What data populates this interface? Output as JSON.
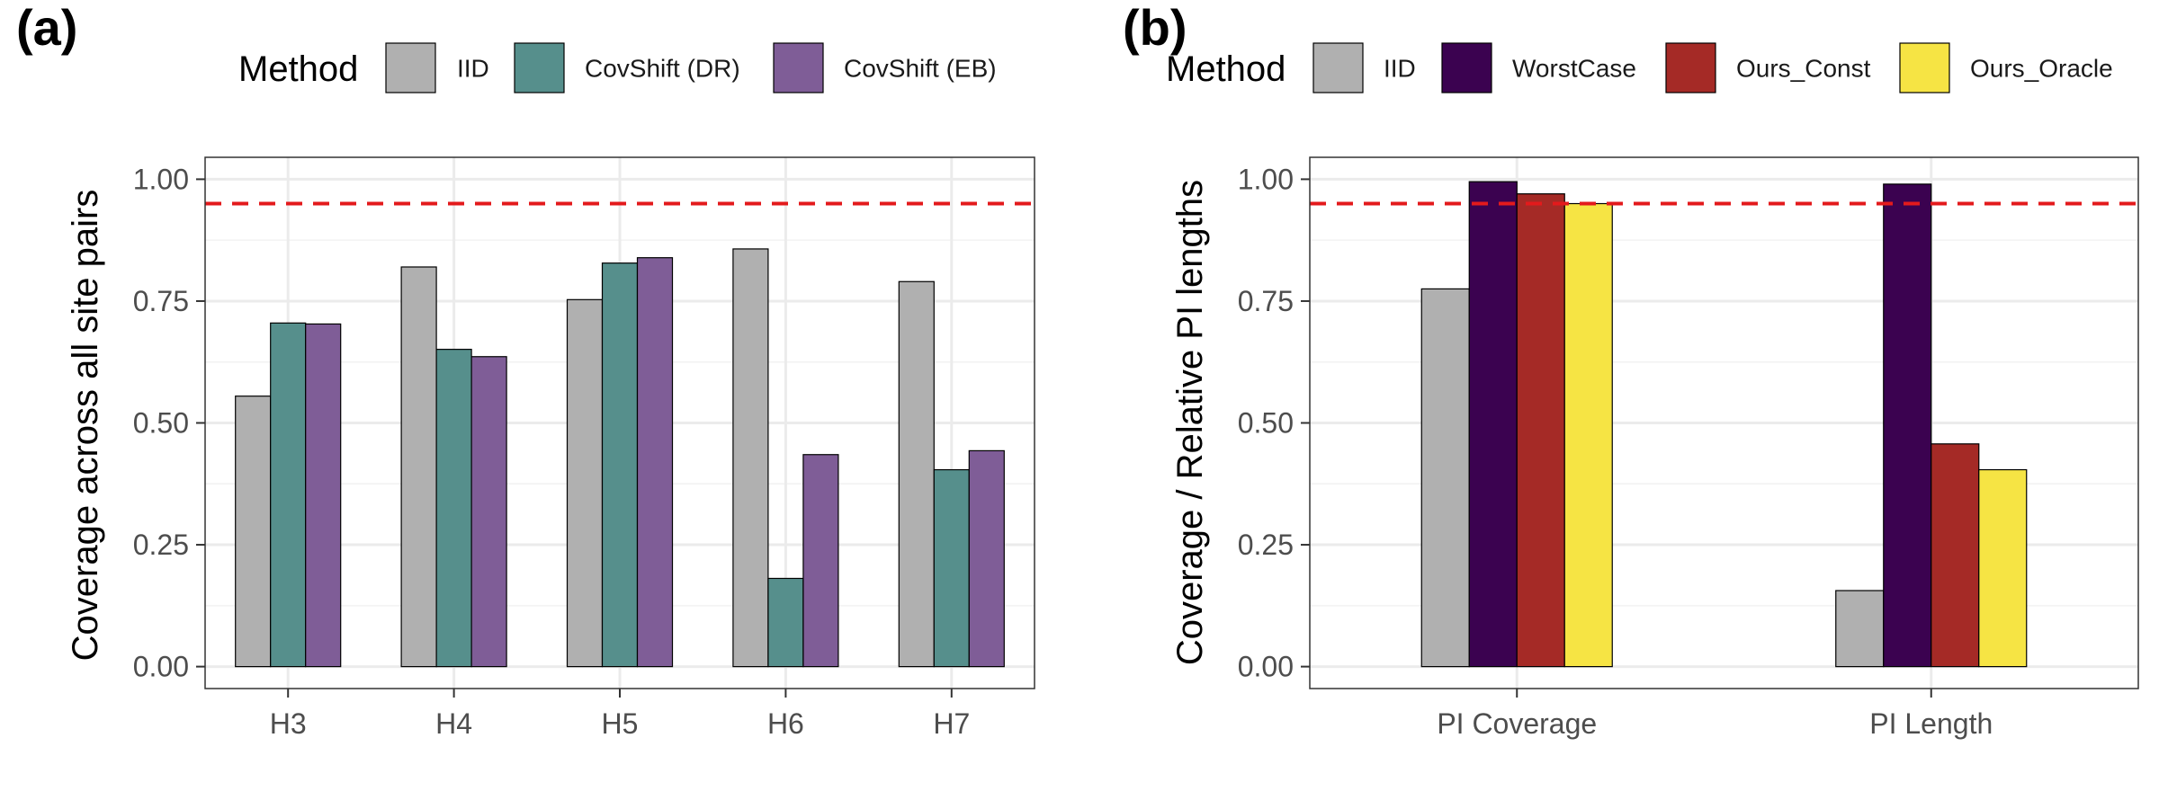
{
  "panels": [
    {
      "letter": "(a)",
      "legend_title": "Method",
      "ylabel": "Coverage across all site pairs",
      "chart_data": {
        "type": "bar",
        "categories": [
          "H3",
          "H4",
          "H5",
          "H6",
          "H7"
        ],
        "series": [
          {
            "name": "IID",
            "color": "#b0b0b0",
            "values": [
              0.555,
              0.82,
              0.753,
              0.857,
              0.79
            ]
          },
          {
            "name": "CovShift (DR)",
            "color": "#568f8c",
            "values": [
              0.705,
              0.651,
              0.828,
              0.181,
              0.404
            ]
          },
          {
            "name": "CovShift (EB)",
            "color": "#7f5d97",
            "values": [
              0.703,
              0.636,
              0.839,
              0.435,
              0.443
            ]
          }
        ],
        "ylim": [
          -0.045,
          1.045
        ],
        "yticks": [
          "0.00",
          "0.25",
          "0.50",
          "0.75",
          "1.00"
        ],
        "ytick_values": [
          0,
          0.25,
          0.5,
          0.75,
          1.0
        ],
        "reference_line": {
          "value": 0.95,
          "color": "#e31a1c",
          "style": "dashed"
        },
        "grid": true,
        "legend_position": "top"
      }
    },
    {
      "letter": "(b)",
      "legend_title": "Method",
      "ylabel": "Coverage / Relative PI lengths",
      "chart_data": {
        "type": "bar",
        "categories": [
          "PI Coverage",
          "PI Length"
        ],
        "series": [
          {
            "name": "IID",
            "color": "#b0b0b0",
            "values": [
              0.775,
              0.156
            ]
          },
          {
            "name": "WorstCase",
            "color": "#3b0250",
            "values": [
              0.995,
              0.99
            ]
          },
          {
            "name": "Ours_Const",
            "color": "#a52a26",
            "values": [
              0.97,
              0.457
            ]
          },
          {
            "name": "Ours_Oracle",
            "color": "#f6e444",
            "values": [
              0.95,
              0.404
            ]
          }
        ],
        "ylim": [
          -0.045,
          1.045
        ],
        "yticks": [
          "0.00",
          "0.25",
          "0.50",
          "0.75",
          "1.00"
        ],
        "ytick_values": [
          0,
          0.25,
          0.5,
          0.75,
          1.0
        ],
        "reference_line": {
          "value": 0.95,
          "color": "#e31a1c",
          "style": "dashed"
        },
        "grid": true,
        "legend_position": "top"
      }
    }
  ]
}
